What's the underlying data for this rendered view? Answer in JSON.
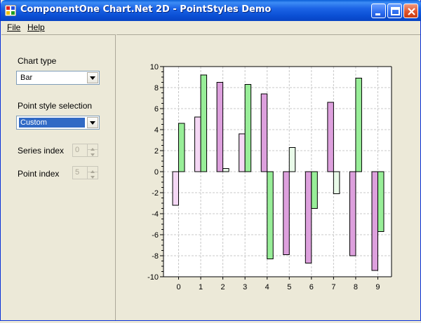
{
  "window": {
    "title": "ComponentOne Chart.Net 2D - PointStyles Demo"
  },
  "menu": {
    "file_label": "File",
    "help_label": "Help"
  },
  "controls": {
    "chart_type_label": "Chart type",
    "chart_type_value": "Bar",
    "point_style_label": "Point style selection",
    "point_style_value": "Custom",
    "series_index_label": "Series index",
    "series_index_value": "0",
    "point_index_label": "Point index",
    "point_index_value": "5"
  },
  "colors": {
    "series0": "#dda0dd",
    "series1": "#98ee98",
    "series0_highlight": "#f5d8f5",
    "series1_highlight": "#e9fbe9",
    "titlebar": "#0a4fd4"
  },
  "chart_data": {
    "type": "bar",
    "categories": [
      0,
      1,
      2,
      3,
      4,
      5,
      6,
      7,
      8,
      9
    ],
    "series": [
      {
        "values": [
          -3.2,
          5.2,
          8.5,
          3.6,
          7.4,
          -7.9,
          -8.7,
          6.6,
          -8.0,
          -9.4
        ]
      },
      {
        "values": [
          4.6,
          9.2,
          0.3,
          8.3,
          -8.3,
          2.3,
          -3.5,
          -2.1,
          8.9,
          -5.7
        ]
      }
    ],
    "highlight": [
      [
        true,
        true,
        false,
        true,
        false,
        false,
        false,
        false,
        false,
        false
      ],
      [
        false,
        false,
        true,
        false,
        false,
        true,
        false,
        true,
        false,
        false
      ]
    ],
    "ylim": [
      -10,
      10
    ],
    "yticks": [
      -10,
      -8,
      -6,
      -4,
      -2,
      0,
      2,
      4,
      6,
      8,
      10
    ],
    "grid": true
  }
}
